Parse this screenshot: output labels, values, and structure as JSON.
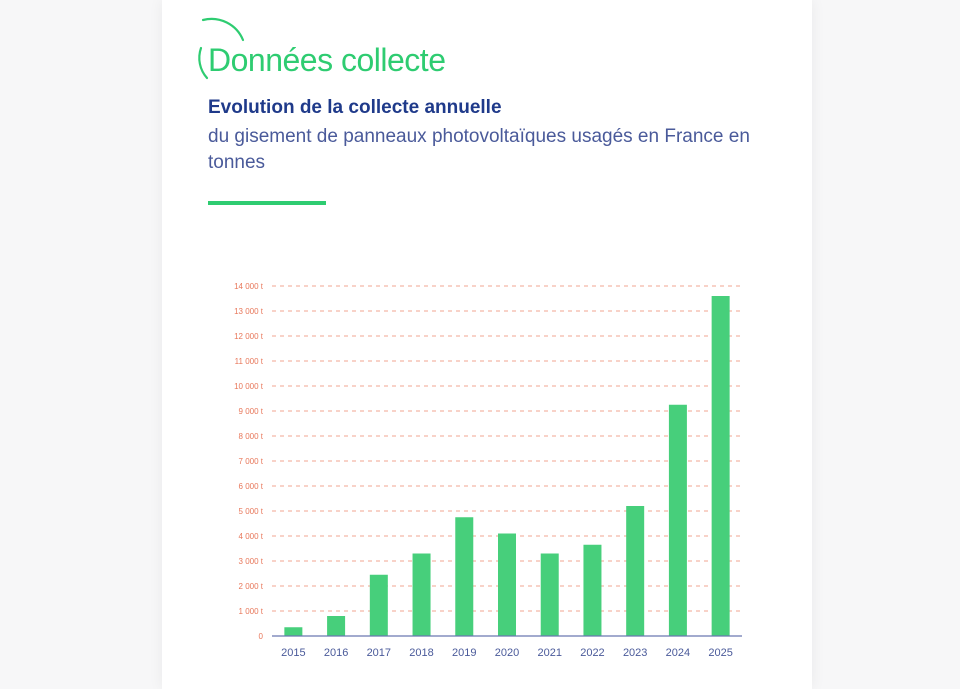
{
  "header": {
    "section_title": "Données collecte",
    "chart_title": "Evolution de la collecte annuelle",
    "chart_subtitle": "du gisement de panneaux photovoltaïques usagés en France en tonnes"
  },
  "colors": {
    "accent": "#2ecc71",
    "bar": "#47cf7b",
    "grid": "#f0a591",
    "ytick": "#e8775a",
    "xtick": "#4a5a9a",
    "title": "#1f3a8a",
    "axis": "#6a78b0"
  },
  "chart_data": {
    "type": "bar",
    "title": "Evolution de la collecte annuelle",
    "subtitle": "du gisement de panneaux photovoltaïques usagés en France en tonnes",
    "xlabel": "",
    "ylabel": "",
    "categories": [
      "2015",
      "2016",
      "2017",
      "2018",
      "2019",
      "2020",
      "2021",
      "2022",
      "2023",
      "2024",
      "2025"
    ],
    "values": [
      350,
      800,
      2450,
      3300,
      4750,
      4100,
      3300,
      3650,
      5200,
      9250,
      13600
    ],
    "ylim": [
      0,
      14000
    ],
    "yticks": [
      0,
      1000,
      2000,
      3000,
      4000,
      5000,
      6000,
      7000,
      8000,
      9000,
      10000,
      11000,
      12000,
      13000,
      14000
    ],
    "ytick_labels": [
      "0",
      "1 000 t",
      "2 000 t",
      "3 000 t",
      "4 000 t",
      "5 000 t",
      "6 000 t",
      "7 000 t",
      "8 000 t",
      "9 000 t",
      "10 000 t",
      "11 000 t",
      "12 000 t",
      "13 000 t",
      "14 000 t"
    ],
    "grid": true,
    "grid_style": "dashed",
    "legend": "none"
  }
}
